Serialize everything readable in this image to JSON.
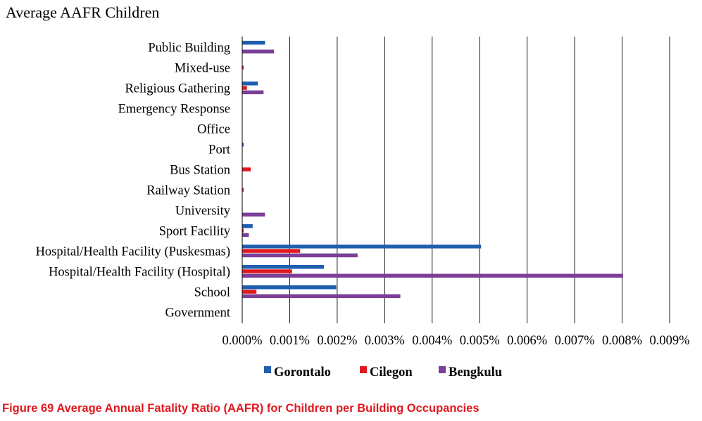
{
  "caption": "Figure 69 Average Annual Fatality Ratio (AAFR) for Children per Building Occupancies",
  "chart_data": {
    "type": "bar",
    "orientation": "horizontal",
    "title": "Average AAFR Children",
    "xlabel": "",
    "ylabel": "",
    "xlim": [
      0,
      0.009
    ],
    "x_ticks": [
      0,
      0.001,
      0.002,
      0.003,
      0.004,
      0.005,
      0.006,
      0.007,
      0.008,
      0.009
    ],
    "x_tick_labels": [
      "0.000%",
      "0.001%",
      "0.002%",
      "0.003%",
      "0.004%",
      "0.005%",
      "0.006%",
      "0.007%",
      "0.008%",
      "0.009%"
    ],
    "vertical_gridlines": true,
    "legend_position": "bottom",
    "categories": [
      "Public Building",
      "Mixed-use",
      "Religious Gathering",
      "Emergency Response",
      "Office",
      "Port",
      "Bus Station",
      "Railway Station",
      "University",
      "Sport Facility",
      "Hospital/Health Facility (Puskesmas)",
      "Hospital/Health Facility (Hospital)",
      "School",
      "Government"
    ],
    "series": [
      {
        "name": "Gorontalo",
        "color": "#1f5fae",
        "values": [
          0.00048,
          0,
          0.00033,
          0,
          0,
          3e-05,
          0,
          0,
          0,
          0.00022,
          0.00503,
          0.00172,
          0.00198,
          0
        ]
      },
      {
        "name": "Cilegon",
        "color": "#e0191f",
        "values": [
          0,
          3e-05,
          0.0001,
          0,
          0,
          0,
          0.00018,
          3e-05,
          0,
          3e-05,
          0.00122,
          0.00105,
          0.0003,
          0
        ]
      },
      {
        "name": "Bengkulu",
        "color": "#7b3f98",
        "values": [
          0.00067,
          0,
          0.00045,
          0,
          0,
          0,
          0,
          0,
          0.00048,
          0.00014,
          0.00243,
          0.00802,
          0.00333,
          0
        ]
      }
    ]
  }
}
